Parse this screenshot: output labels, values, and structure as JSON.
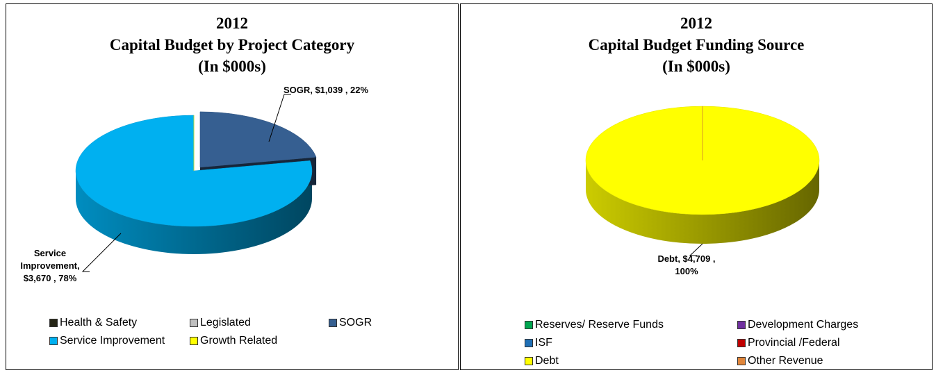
{
  "chart_data": [
    {
      "type": "pie",
      "title": [
        "2012",
        "Capital Budget by Project Category",
        "(In $000s)"
      ],
      "categories": [
        "Health & Safety",
        "Legislated",
        "SOGR",
        "Service Improvement",
        "Growth Related"
      ],
      "values": [
        0,
        0,
        1039,
        3670,
        0
      ],
      "value_labels": [
        null,
        null,
        "SOGR, $1,039 , 22%",
        "Service Improvement, $3,670 , 78%",
        null
      ],
      "colors": [
        "#262616",
        "#c0c0c0",
        "#365f91",
        "#00b0f0",
        "#ffff00"
      ],
      "legend": "bottom"
    },
    {
      "type": "pie",
      "title": [
        "2012",
        "Capital Budget Funding Source",
        "(In $000s)"
      ],
      "categories": [
        "Reserves/ Reserve Funds",
        "Development Charges",
        "ISF",
        "Provincial /Federal",
        "Debt",
        "Other Revenue"
      ],
      "values": [
        0,
        0,
        0,
        0,
        4709,
        0
      ],
      "value_labels": [
        null,
        null,
        null,
        null,
        "Debt, $4,709 , 100%",
        null
      ],
      "colors": [
        "#00a650",
        "#7030a0",
        "#1f6fb5",
        "#c00000",
        "#ffff00",
        "#e0853a"
      ],
      "legend": "bottom"
    }
  ]
}
